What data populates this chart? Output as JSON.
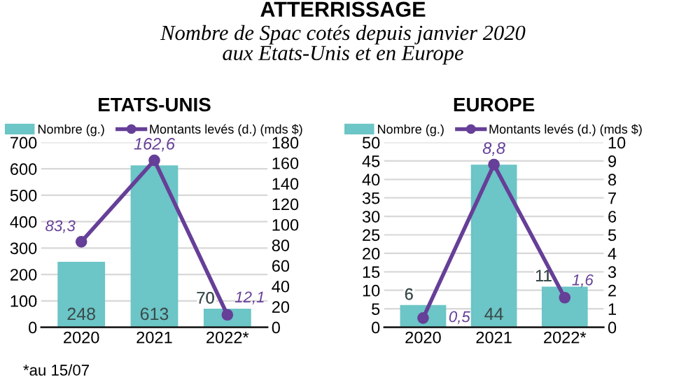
{
  "chart_data": [
    {
      "type": "other",
      "title": "ATTERRISSAGE",
      "subtitle": "Nombre de Spac cotés depuis janvier 2020\naux Etats-Unis et en Europe"
    },
    {
      "type": "bar",
      "title": "ETATS-UNIS",
      "categories": [
        "2020",
        "2021",
        "2022*"
      ],
      "series": [
        {
          "name": "Nombre (g.)",
          "type": "bar",
          "color": "#6cc5c6",
          "values": [
            248,
            613,
            70
          ],
          "value_labels": [
            "248",
            "613",
            "70"
          ]
        },
        {
          "name": "Montants levés (d.) (mds $)",
          "type": "line",
          "axis": "y2",
          "color": "#663f98",
          "marker": "circle",
          "values": [
            83.3,
            162.6,
            12.1
          ],
          "value_labels": [
            "83,3",
            "162,6",
            "12,1"
          ]
        }
      ],
      "ylim": [
        0,
        700
      ],
      "yticks": [
        0,
        100,
        200,
        300,
        400,
        500,
        600,
        700
      ],
      "y2lim": [
        0,
        180
      ],
      "y2ticks": [
        0,
        20,
        40,
        60,
        80,
        100,
        120,
        140,
        160,
        180
      ],
      "grid": "y",
      "legend": "top",
      "annotations": [
        "*au 15/07"
      ]
    },
    {
      "type": "bar",
      "title": "EUROPE",
      "categories": [
        "2020",
        "2021",
        "2022*"
      ],
      "series": [
        {
          "name": "Nombre (g.)",
          "type": "bar",
          "color": "#6cc5c6",
          "values": [
            6,
            44,
            11
          ],
          "value_labels": [
            "6",
            "44",
            "11"
          ]
        },
        {
          "name": "Montants levés (d.) (mds $)",
          "type": "line",
          "axis": "y2",
          "color": "#663f98",
          "marker": "circle",
          "values": [
            0.5,
            8.8,
            1.6
          ],
          "value_labels": [
            "0,5",
            "8,8",
            "1,6"
          ]
        }
      ],
      "ylim": [
        0,
        50
      ],
      "yticks": [
        0,
        5,
        10,
        15,
        20,
        25,
        30,
        35,
        40,
        45,
        50
      ],
      "y2lim": [
        0,
        10
      ],
      "y2ticks": [
        0,
        1,
        2,
        3,
        4,
        5,
        6,
        7,
        8,
        9,
        10
      ],
      "grid": "y",
      "legend": "top"
    }
  ]
}
